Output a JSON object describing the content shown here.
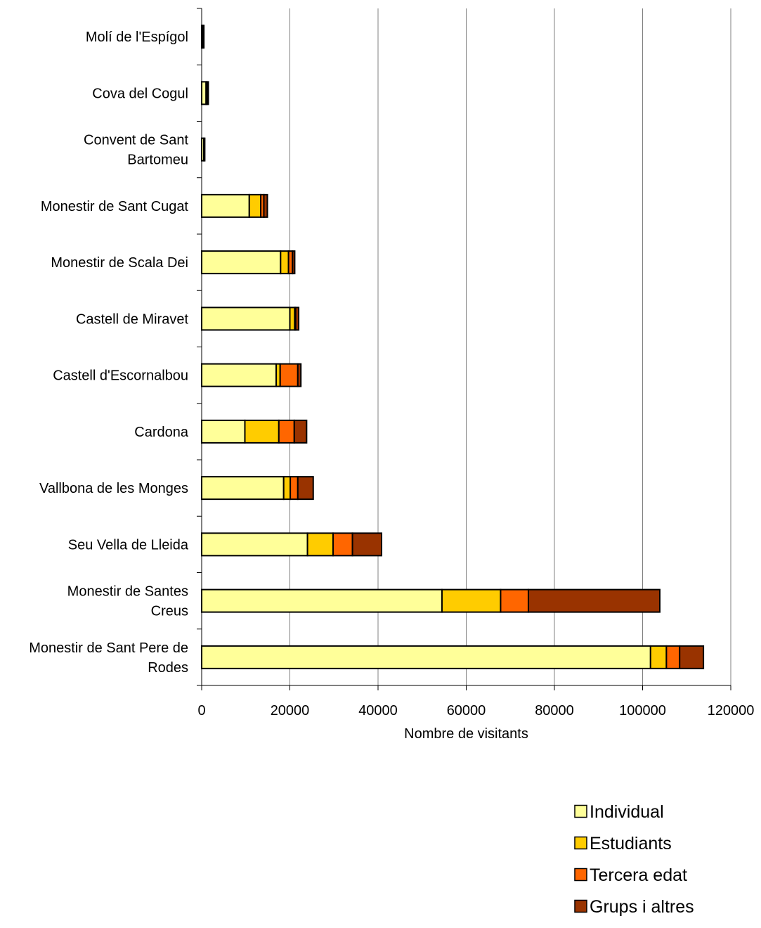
{
  "chart_data": {
    "type": "bar",
    "orientation": "horizontal",
    "stacked": true,
    "title": "",
    "xlabel": "Nombre de visitants",
    "ylabel": "",
    "xlim": [
      0,
      120000
    ],
    "x_ticks": [
      "0",
      "20000",
      "40000",
      "60000",
      "80000",
      "100000",
      "120000"
    ],
    "grid": true,
    "legend_position": "bottom-right",
    "categories": [
      [
        "Molí de l'Espígol"
      ],
      [
        "Cova del Cogul"
      ],
      [
        "Convent de Sant",
        "Bartomeu"
      ],
      [
        "Monestir de Sant Cugat"
      ],
      [
        "Monestir de Scala Dei"
      ],
      [
        "Castell de Miravet"
      ],
      [
        "Castell d'Escornalbou"
      ],
      [
        "Cardona"
      ],
      [
        "Vallbona de les Monges"
      ],
      [
        "Seu Vella de Lleida"
      ],
      [
        "Monestir de Santes",
        "Creus"
      ],
      [
        "Monestir de Sant Pere de",
        "Rodes"
      ]
    ],
    "series": [
      {
        "name": "Individual",
        "color": "#FFFF99",
        "values": [
          300,
          1000,
          500,
          10800,
          17900,
          20000,
          16900,
          9800,
          18600,
          24000,
          54500,
          101800
        ]
      },
      {
        "name": "Estudiants",
        "color": "#FFCC00",
        "values": [
          0,
          200,
          0,
          2600,
          1800,
          1100,
          900,
          7700,
          1500,
          5800,
          13300,
          3600
        ]
      },
      {
        "name": "Tercera edat",
        "color": "#FF6600",
        "values": [
          0,
          0,
          0,
          700,
          900,
          200,
          4000,
          3500,
          1700,
          4400,
          6300,
          3000
        ]
      },
      {
        "name": "Grups i altres",
        "color": "#993300",
        "values": [
          200,
          300,
          200,
          800,
          500,
          700,
          700,
          2800,
          3500,
          6600,
          29800,
          5400
        ]
      }
    ]
  }
}
